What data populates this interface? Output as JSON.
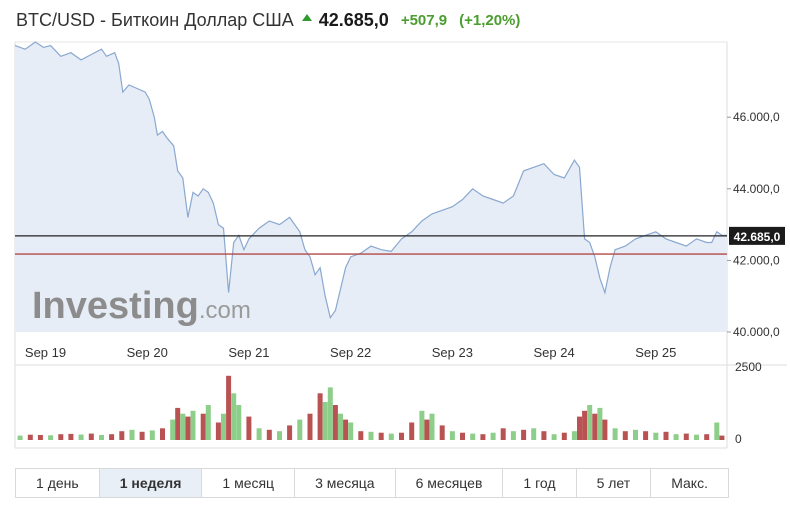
{
  "header": {
    "name": "BTC/USD - Биткоин Доллар США",
    "price": "42.685,0",
    "change": "+507,9",
    "change_pct": "(+1,20%)"
  },
  "tabs": [
    "1 день",
    "1 неделя",
    "1 месяц",
    "3 месяца",
    "6 месяцев",
    "1 год",
    "5 лет",
    "Макс."
  ],
  "active_tab": "1 неделя",
  "watermark": {
    "brand": "Investing",
    "suffix": ".com"
  },
  "colors": {
    "line": "#8aa8d0",
    "area": "#e6edf6",
    "current_line": "#222222",
    "prev_close_line": "#b34848",
    "up_volume": "#8dcf8a",
    "down_volume": "#b95252"
  },
  "chart_data": {
    "type": "area",
    "x_ticks": [
      "Sep 19",
      "Sep 20",
      "Sep 21",
      "Sep 22",
      "Sep 23",
      "Sep 24",
      "Sep 25"
    ],
    "y_ticks": [
      "46.000,0",
      "44.000,0",
      "42.000,0",
      "40.000,0"
    ],
    "ylim": [
      40000,
      48100
    ],
    "x_range": [
      0,
      7
    ],
    "current_price_label": "42.685,0",
    "current_price": 42685,
    "previous_close": 42177,
    "price_series": [
      [
        0.0,
        48000
      ],
      [
        0.1,
        47900
      ],
      [
        0.2,
        48100
      ],
      [
        0.28,
        47950
      ],
      [
        0.35,
        48000
      ],
      [
        0.45,
        47700
      ],
      [
        0.55,
        47800
      ],
      [
        0.65,
        47600
      ],
      [
        0.75,
        47750
      ],
      [
        0.85,
        47900
      ],
      [
        0.9,
        47700
      ],
      [
        0.98,
        47800
      ],
      [
        1.02,
        47500
      ],
      [
        1.06,
        46700
      ],
      [
        1.12,
        46900
      ],
      [
        1.2,
        46800
      ],
      [
        1.28,
        46700
      ],
      [
        1.32,
        46500
      ],
      [
        1.37,
        46000
      ],
      [
        1.4,
        45500
      ],
      [
        1.45,
        45600
      ],
      [
        1.5,
        45400
      ],
      [
        1.56,
        45200
      ],
      [
        1.6,
        44500
      ],
      [
        1.65,
        44300
      ],
      [
        1.7,
        43200
      ],
      [
        1.75,
        43900
      ],
      [
        1.8,
        43800
      ],
      [
        1.85,
        44000
      ],
      [
        1.9,
        43900
      ],
      [
        1.95,
        43600
      ],
      [
        2.0,
        43000
      ],
      [
        2.05,
        42900
      ],
      [
        2.1,
        41100
      ],
      [
        2.15,
        42500
      ],
      [
        2.2,
        42700
      ],
      [
        2.25,
        42300
      ],
      [
        2.3,
        42600
      ],
      [
        2.4,
        42900
      ],
      [
        2.5,
        43100
      ],
      [
        2.6,
        43000
      ],
      [
        2.7,
        43200
      ],
      [
        2.8,
        42800
      ],
      [
        2.85,
        42300
      ],
      [
        2.9,
        42100
      ],
      [
        2.95,
        41600
      ],
      [
        3.0,
        41800
      ],
      [
        3.05,
        41000
      ],
      [
        3.1,
        40400
      ],
      [
        3.15,
        40600
      ],
      [
        3.2,
        41200
      ],
      [
        3.25,
        41800
      ],
      [
        3.3,
        42100
      ],
      [
        3.4,
        42200
      ],
      [
        3.5,
        42400
      ],
      [
        3.6,
        42300
      ],
      [
        3.7,
        42250
      ],
      [
        3.8,
        42600
      ],
      [
        3.9,
        42800
      ],
      [
        4.0,
        43100
      ],
      [
        4.1,
        43300
      ],
      [
        4.2,
        43400
      ],
      [
        4.3,
        43500
      ],
      [
        4.4,
        43700
      ],
      [
        4.5,
        44000
      ],
      [
        4.6,
        43800
      ],
      [
        4.7,
        43700
      ],
      [
        4.8,
        43600
      ],
      [
        4.9,
        43800
      ],
      [
        5.0,
        44500
      ],
      [
        5.1,
        44600
      ],
      [
        5.2,
        44700
      ],
      [
        5.3,
        44400
      ],
      [
        5.4,
        44300
      ],
      [
        5.5,
        44800
      ],
      [
        5.55,
        44600
      ],
      [
        5.6,
        42600
      ],
      [
        5.65,
        42500
      ],
      [
        5.7,
        42100
      ],
      [
        5.75,
        41500
      ],
      [
        5.8,
        41100
      ],
      [
        5.85,
        41800
      ],
      [
        5.9,
        42300
      ],
      [
        6.0,
        42400
      ],
      [
        6.1,
        42600
      ],
      [
        6.2,
        42700
      ],
      [
        6.3,
        42800
      ],
      [
        6.4,
        42600
      ],
      [
        6.5,
        42500
      ],
      [
        6.6,
        42400
      ],
      [
        6.7,
        42600
      ],
      [
        6.8,
        42500
      ],
      [
        6.85,
        42500
      ],
      [
        6.9,
        42800
      ],
      [
        6.95,
        42700
      ],
      [
        7.0,
        42700
      ]
    ],
    "volume": {
      "label_max": "2500",
      "label_min": "0",
      "max": 2500,
      "bars": [
        [
          0.05,
          150,
          "u"
        ],
        [
          0.15,
          180,
          "d"
        ],
        [
          0.25,
          170,
          "d"
        ],
        [
          0.35,
          160,
          "u"
        ],
        [
          0.45,
          200,
          "d"
        ],
        [
          0.55,
          210,
          "d"
        ],
        [
          0.65,
          190,
          "u"
        ],
        [
          0.75,
          220,
          "d"
        ],
        [
          0.85,
          170,
          "u"
        ],
        [
          0.95,
          200,
          "d"
        ],
        [
          1.05,
          300,
          "d"
        ],
        [
          1.15,
          350,
          "u"
        ],
        [
          1.25,
          280,
          "d"
        ],
        [
          1.35,
          330,
          "u"
        ],
        [
          1.45,
          400,
          "d"
        ],
        [
          1.55,
          700,
          "u"
        ],
        [
          1.6,
          1100,
          "d"
        ],
        [
          1.65,
          900,
          "u"
        ],
        [
          1.7,
          800,
          "d"
        ],
        [
          1.75,
          1000,
          "u"
        ],
        [
          1.85,
          900,
          "d"
        ],
        [
          1.9,
          1200,
          "u"
        ],
        [
          2.0,
          600,
          "d"
        ],
        [
          2.05,
          900,
          "u"
        ],
        [
          2.1,
          2200,
          "d"
        ],
        [
          2.15,
          1600,
          "u"
        ],
        [
          2.2,
          1200,
          "u"
        ],
        [
          2.3,
          800,
          "d"
        ],
        [
          2.4,
          400,
          "u"
        ],
        [
          2.5,
          350,
          "d"
        ],
        [
          2.6,
          300,
          "u"
        ],
        [
          2.7,
          500,
          "d"
        ],
        [
          2.8,
          700,
          "u"
        ],
        [
          2.9,
          900,
          "d"
        ],
        [
          3.0,
          1600,
          "d"
        ],
        [
          3.05,
          1300,
          "u"
        ],
        [
          3.1,
          1800,
          "u"
        ],
        [
          3.15,
          1200,
          "d"
        ],
        [
          3.2,
          900,
          "u"
        ],
        [
          3.25,
          700,
          "d"
        ],
        [
          3.3,
          600,
          "u"
        ],
        [
          3.4,
          300,
          "d"
        ],
        [
          3.5,
          280,
          "u"
        ],
        [
          3.6,
          250,
          "d"
        ],
        [
          3.7,
          220,
          "u"
        ],
        [
          3.8,
          250,
          "d"
        ],
        [
          3.9,
          600,
          "d"
        ],
        [
          4.0,
          1000,
          "u"
        ],
        [
          4.05,
          700,
          "d"
        ],
        [
          4.1,
          900,
          "u"
        ],
        [
          4.2,
          500,
          "d"
        ],
        [
          4.3,
          300,
          "u"
        ],
        [
          4.4,
          250,
          "d"
        ],
        [
          4.5,
          220,
          "u"
        ],
        [
          4.6,
          200,
          "d"
        ],
        [
          4.7,
          250,
          "u"
        ],
        [
          4.8,
          400,
          "d"
        ],
        [
          4.9,
          300,
          "u"
        ],
        [
          5.0,
          350,
          "d"
        ],
        [
          5.1,
          400,
          "u"
        ],
        [
          5.2,
          300,
          "d"
        ],
        [
          5.3,
          200,
          "u"
        ],
        [
          5.4,
          250,
          "d"
        ],
        [
          5.5,
          300,
          "u"
        ],
        [
          5.55,
          800,
          "d"
        ],
        [
          5.6,
          1000,
          "d"
        ],
        [
          5.65,
          1200,
          "u"
        ],
        [
          5.7,
          900,
          "d"
        ],
        [
          5.75,
          1100,
          "u"
        ],
        [
          5.8,
          700,
          "d"
        ],
        [
          5.9,
          400,
          "u"
        ],
        [
          6.0,
          300,
          "d"
        ],
        [
          6.1,
          350,
          "u"
        ],
        [
          6.2,
          300,
          "d"
        ],
        [
          6.3,
          250,
          "u"
        ],
        [
          6.4,
          280,
          "d"
        ],
        [
          6.5,
          200,
          "u"
        ],
        [
          6.6,
          220,
          "d"
        ],
        [
          6.7,
          180,
          "u"
        ],
        [
          6.8,
          200,
          "d"
        ],
        [
          6.9,
          600,
          "u"
        ],
        [
          6.95,
          150,
          "d"
        ]
      ]
    }
  }
}
